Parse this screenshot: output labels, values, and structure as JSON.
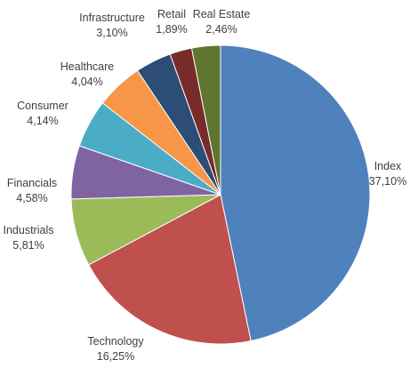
{
  "chart_data": {
    "type": "pie",
    "title": "",
    "slices": [
      {
        "name": "Index",
        "label": "37,10%",
        "value": 37.1,
        "color": "#4f81bd"
      },
      {
        "name": "Technology",
        "label": "16,25%",
        "value": 16.25,
        "color": "#c0504d"
      },
      {
        "name": "Industrials",
        "label": "5,81%",
        "value": 5.81,
        "color": "#9bbb59"
      },
      {
        "name": "Financials",
        "label": "4,58%",
        "value": 4.58,
        "color": "#8064a2"
      },
      {
        "name": "Consumer",
        "label": "4,14%",
        "value": 4.14,
        "color": "#4bacc6"
      },
      {
        "name": "Healthcare",
        "label": "4,04%",
        "value": 4.04,
        "color": "#f79646"
      },
      {
        "name": "Infrastructure",
        "label": "3,10%",
        "value": 3.1,
        "color": "#2c4d75"
      },
      {
        "name": "Retail",
        "label": "1,89%",
        "value": 1.89,
        "color": "#772c2a"
      },
      {
        "name": "Real Estate",
        "label": "2,46%",
        "value": 2.46,
        "color": "#5f7530"
      }
    ],
    "legend": "none",
    "start_angle": "12 o'clock",
    "direction": "clockwise"
  }
}
